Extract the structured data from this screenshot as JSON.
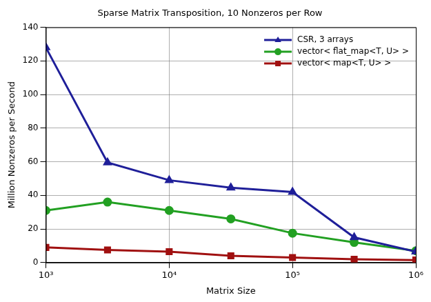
{
  "chart_data": {
    "type": "line",
    "title": "Sparse Matrix Transposition, 10 Nonzeros per Row",
    "x_label": "Matrix Size",
    "y_label": "Million Nonzeros per Second",
    "x": [
      1000,
      3162,
      10000,
      31623,
      100000,
      316228,
      1000000
    ],
    "series": [
      {
        "name": "CSR, 3 arrays",
        "color": "#1f1f99",
        "marker": "triangle",
        "line_style": "solid",
        "values": [
          128,
          59.5,
          49,
          44.5,
          42,
          15,
          6.5
        ]
      },
      {
        "name": "vector< flat_map<T, U> >",
        "color": "#22a022",
        "marker": "circle",
        "line_style": "solid",
        "values": [
          31,
          36,
          31,
          26,
          17.5,
          12,
          7
        ]
      },
      {
        "name": "vector< map<T, U> >",
        "color": "#a01010",
        "marker": "square",
        "line_style": "solid",
        "values": [
          9,
          7.5,
          6.5,
          4,
          3,
          2,
          1.5
        ]
      }
    ],
    "log": "x",
    "xlim": [
      1000,
      1000000
    ],
    "xticks": [
      {
        "value": 1000,
        "label": "10³"
      },
      {
        "value": 10000,
        "label": "10⁴"
      },
      {
        "value": 100000,
        "label": "10⁵"
      },
      {
        "value": 1000000,
        "label": "10⁶"
      }
    ],
    "ylim": [
      0,
      140
    ],
    "yticks": [
      0,
      20,
      40,
      60,
      80,
      100,
      120,
      140
    ],
    "grid": true,
    "legend": "upper right"
  }
}
